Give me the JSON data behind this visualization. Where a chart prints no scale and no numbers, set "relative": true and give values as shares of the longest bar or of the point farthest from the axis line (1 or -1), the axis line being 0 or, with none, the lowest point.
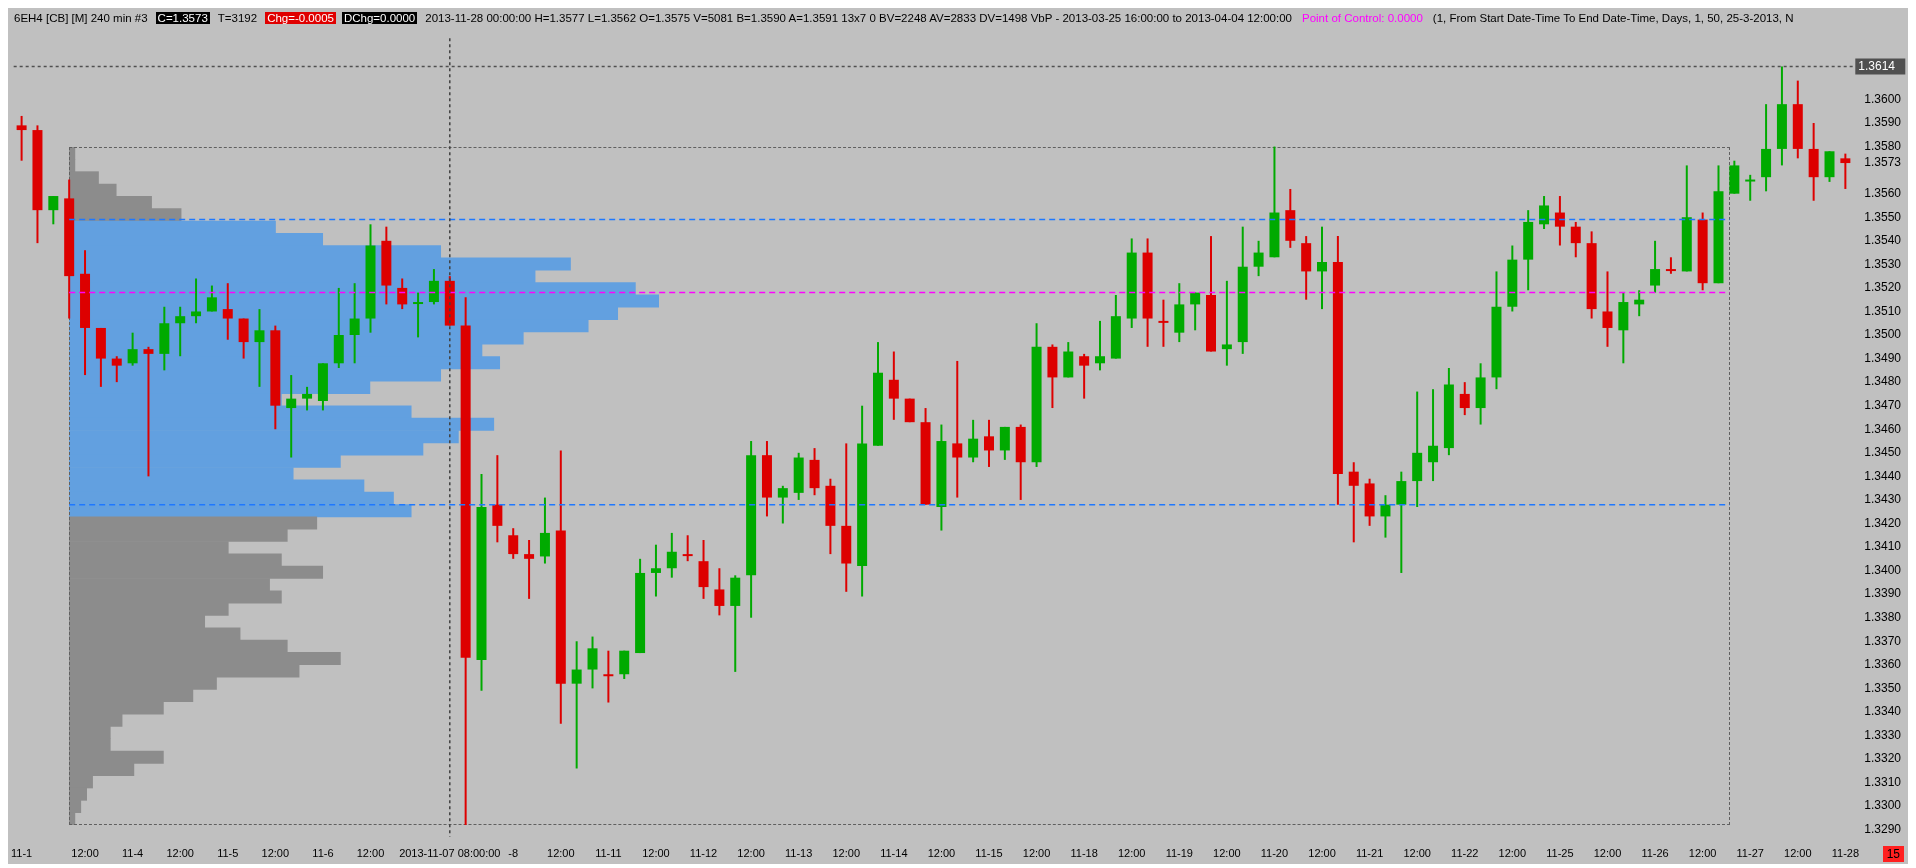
{
  "chart_data": [
    {
      "type": "candlestick",
      "title": "6EH4 [CB] [M] 240 min #3",
      "annotations": [
        "C=1.3573",
        "T=3192",
        "Chg=-0.0005",
        "DChg=0.0000",
        "2013-11-28 00:00:00 H=1.3577 L=1.3562 O=1.3575 V=5081 B=1.3590 A=1.3591 13x7 0 BV=2248 AV=2833 DV=1498 VbP - 2013-03-25 16:00:00 to 2013-04-04 12:00:00",
        "Point of Control: 0.0000",
        "(1, From Start Date-Time To End Date-Time, Days, 1, 50, 25-3-2013, N",
        "15"
      ],
      "categories": [
        "11-1",
        null,
        null,
        null,
        "12:00",
        null,
        null,
        "11-4",
        null,
        null,
        "12:00",
        null,
        null,
        "11-5",
        null,
        null,
        "12:00",
        null,
        null,
        "11-6",
        null,
        null,
        "12:00",
        null,
        null,
        null,
        null,
        "2013-11-07 08:00:00",
        null,
        null,
        null,
        "-8",
        null,
        null,
        "12:00",
        null,
        null,
        "11-11",
        null,
        null,
        "12:00",
        null,
        null,
        "11-12",
        null,
        null,
        "12:00",
        null,
        null,
        "11-13",
        null,
        null,
        "12:00",
        null,
        null,
        "11-14",
        null,
        null,
        "12:00",
        null,
        null,
        "11-15",
        null,
        null,
        "12:00",
        null,
        null,
        "11-18",
        null,
        null,
        "12:00",
        null,
        null,
        "11-19",
        null,
        null,
        "12:00",
        null,
        null,
        "11-20",
        null,
        null,
        "12:00",
        null,
        null,
        "11-21",
        null,
        null,
        "12:00",
        null,
        null,
        "11-22",
        null,
        null,
        "12:00",
        null,
        null,
        "11-25",
        null,
        null,
        "12:00",
        null,
        null,
        "11-26",
        null,
        null,
        "12:00",
        null,
        null,
        "11-27",
        null,
        null,
        "12:00",
        null,
        null,
        "11-28"
      ],
      "ohlc": [
        [
          1.3589,
          1.3593,
          1.3574,
          1.3587
        ],
        [
          1.3587,
          1.3589,
          1.3539,
          1.3553
        ],
        [
          1.3553,
          1.3559,
          1.3547,
          1.3559
        ],
        [
          1.3558,
          1.3566,
          1.3507,
          1.3525
        ],
        [
          1.3526,
          1.3536,
          1.3483,
          1.3503
        ],
        [
          1.3503,
          1.3503,
          1.3478,
          1.349
        ],
        [
          1.349,
          1.3491,
          1.348,
          1.3487
        ],
        [
          1.3488,
          1.3501,
          1.3487,
          1.3494
        ],
        [
          1.3494,
          1.3495,
          1.344,
          1.3492
        ],
        [
          1.3492,
          1.3512,
          1.3485,
          1.3505
        ],
        [
          1.3505,
          1.3512,
          1.3491,
          1.3508
        ],
        [
          1.3508,
          1.3524,
          1.3505,
          1.351
        ],
        [
          1.351,
          1.3521,
          1.351,
          1.3516
        ],
        [
          1.3511,
          1.3522,
          1.3498,
          1.3507
        ],
        [
          1.3507,
          1.3507,
          1.349,
          1.3497
        ],
        [
          1.3497,
          1.3511,
          1.3478,
          1.3502
        ],
        [
          1.3502,
          1.3504,
          1.346,
          1.347
        ],
        [
          1.3469,
          1.3483,
          1.3448,
          1.3473
        ],
        [
          1.3473,
          1.3478,
          1.3468,
          1.3475
        ],
        [
          1.3472,
          1.3488,
          1.3468,
          1.3488
        ],
        [
          1.3488,
          1.352,
          1.3486,
          1.35
        ],
        [
          1.35,
          1.3522,
          1.3488,
          1.3507
        ],
        [
          1.3507,
          1.3547,
          1.3501,
          1.3538
        ],
        [
          1.354,
          1.3546,
          1.3513,
          1.3521
        ],
        [
          1.352,
          1.3524,
          1.3511,
          1.3513
        ],
        [
          1.3514,
          1.3518,
          1.3499,
          1.3514
        ],
        [
          1.3514,
          1.3528,
          1.3513,
          1.3523
        ],
        [
          1.3523,
          1.3525,
          1.3504,
          1.3504
        ],
        [
          1.3504,
          1.3516,
          1.3292,
          1.3363
        ],
        [
          1.3362,
          1.3441,
          1.3349,
          1.3427
        ],
        [
          1.3428,
          1.3449,
          1.3412,
          1.3419
        ],
        [
          1.3415,
          1.3418,
          1.3405,
          1.3407
        ],
        [
          1.3407,
          1.3413,
          1.3388,
          1.3405
        ],
        [
          1.3406,
          1.3431,
          1.3403,
          1.3416
        ],
        [
          1.3417,
          1.3451,
          1.3335,
          1.3352
        ],
        [
          1.3352,
          1.337,
          1.3316,
          1.3358
        ],
        [
          1.3358,
          1.3372,
          1.335,
          1.3367
        ],
        [
          1.3356,
          1.3366,
          1.3344,
          1.3356
        ],
        [
          1.3356,
          1.3366,
          1.3354,
          1.3366
        ],
        [
          1.3365,
          1.3405,
          1.3365,
          1.3399
        ],
        [
          1.3399,
          1.3411,
          1.3389,
          1.3401
        ],
        [
          1.3401,
          1.3416,
          1.3397,
          1.3408
        ],
        [
          1.3407,
          1.3415,
          1.3404,
          1.3407
        ],
        [
          1.3404,
          1.3413,
          1.3388,
          1.3393
        ],
        [
          1.3392,
          1.3401,
          1.3381,
          1.3385
        ],
        [
          1.3385,
          1.3398,
          1.3357,
          1.3397
        ],
        [
          1.3398,
          1.3455,
          1.338,
          1.3449
        ],
        [
          1.3449,
          1.3455,
          1.3423,
          1.3431
        ],
        [
          1.3431,
          1.3436,
          1.342,
          1.3435
        ],
        [
          1.3433,
          1.345,
          1.343,
          1.3448
        ],
        [
          1.3447,
          1.3452,
          1.3432,
          1.3435
        ],
        [
          1.3436,
          1.3439,
          1.3407,
          1.3419
        ],
        [
          1.3419,
          1.3454,
          1.3391,
          1.3403
        ],
        [
          1.3402,
          1.347,
          1.3389,
          1.3454
        ],
        [
          1.3453,
          1.3497,
          1.3453,
          1.3484
        ],
        [
          1.3481,
          1.3493,
          1.3464,
          1.3473
        ],
        [
          1.3473,
          1.3473,
          1.3463,
          1.3463
        ],
        [
          1.3463,
          1.3469,
          1.3428,
          1.3428
        ],
        [
          1.3427,
          1.3462,
          1.3417,
          1.3455
        ],
        [
          1.3454,
          1.3489,
          1.3431,
          1.3448
        ],
        [
          1.3448,
          1.3464,
          1.3446,
          1.3456
        ],
        [
          1.3457,
          1.3464,
          1.3444,
          1.3451
        ],
        [
          1.3451,
          1.3461,
          1.3447,
          1.3461
        ],
        [
          1.3461,
          1.3462,
          1.343,
          1.3446
        ],
        [
          1.3446,
          1.3505,
          1.3444,
          1.3495
        ],
        [
          1.3495,
          1.3496,
          1.3469,
          1.3482
        ],
        [
          1.3482,
          1.3497,
          1.3482,
          1.3493
        ],
        [
          1.3491,
          1.3492,
          1.3473,
          1.3487
        ],
        [
          1.3488,
          1.3506,
          1.3485,
          1.3491
        ],
        [
          1.349,
          1.3517,
          1.349,
          1.3508
        ],
        [
          1.3507,
          1.3541,
          1.3503,
          1.3535
        ],
        [
          1.3535,
          1.3541,
          1.3495,
          1.3507
        ],
        [
          1.3506,
          1.3515,
          1.3495,
          1.3506
        ],
        [
          1.3501,
          1.3522,
          1.3497,
          1.3513
        ],
        [
          1.3513,
          1.3518,
          1.3502,
          1.3518
        ],
        [
          1.3517,
          1.3542,
          1.3493,
          1.3493
        ],
        [
          1.3494,
          1.3523,
          1.3487,
          1.3496
        ],
        [
          1.3497,
          1.3546,
          1.3492,
          1.3529
        ],
        [
          1.3529,
          1.354,
          1.3525,
          1.3535
        ],
        [
          1.3533,
          1.358,
          1.3533,
          1.3552
        ],
        [
          1.3553,
          1.3562,
          1.3537,
          1.354
        ],
        [
          1.3539,
          1.3542,
          1.3515,
          1.3527
        ],
        [
          1.3527,
          1.3546,
          1.3511,
          1.3531
        ],
        [
          1.3531,
          1.3542,
          1.3428,
          1.3441
        ],
        [
          1.3442,
          1.3446,
          1.3412,
          1.3436
        ],
        [
          1.3437,
          1.3439,
          1.3419,
          1.3423
        ],
        [
          1.3423,
          1.3432,
          1.3414,
          1.3428
        ],
        [
          1.3428,
          1.3442,
          1.3399,
          1.3438
        ],
        [
          1.3438,
          1.3476,
          1.3427,
          1.345
        ],
        [
          1.3446,
          1.3477,
          1.3438,
          1.3453
        ],
        [
          1.3452,
          1.3486,
          1.3449,
          1.3479
        ],
        [
          1.3475,
          1.348,
          1.3466,
          1.3469
        ],
        [
          1.3469,
          1.3488,
          1.3462,
          1.3482
        ],
        [
          1.3482,
          1.3527,
          1.3477,
          1.3512
        ],
        [
          1.3512,
          1.3538,
          1.351,
          1.3532
        ],
        [
          1.3532,
          1.3553,
          1.3519,
          1.3548
        ],
        [
          1.3547,
          1.3559,
          1.3545,
          1.3555
        ],
        [
          1.3552,
          1.3559,
          1.3538,
          1.3546
        ],
        [
          1.3546,
          1.3548,
          1.3533,
          1.3539
        ],
        [
          1.3539,
          1.3544,
          1.3507,
          1.3511
        ],
        [
          1.351,
          1.3527,
          1.3495,
          1.3503
        ],
        [
          1.3502,
          1.3518,
          1.3488,
          1.3514
        ],
        [
          1.3513,
          1.3519,
          1.3508,
          1.3515
        ],
        [
          1.3521,
          1.354,
          1.3518,
          1.3528
        ],
        [
          1.3528,
          1.3533,
          1.3526,
          1.3528
        ],
        [
          1.3527,
          1.3572,
          1.3527,
          1.355
        ],
        [
          1.3549,
          1.3552,
          1.3519,
          1.3522
        ],
        [
          1.3522,
          1.3572,
          1.3522,
          1.3561
        ],
        [
          1.356,
          1.3574,
          1.356,
          1.3572
        ],
        [
          1.3566,
          1.3568,
          1.3557,
          1.3566
        ],
        [
          1.3567,
          1.3598,
          1.3561,
          1.3579
        ],
        [
          1.3579,
          1.3614,
          1.3572,
          1.3598
        ],
        [
          1.3598,
          1.3608,
          1.3575,
          1.3579
        ],
        [
          1.3579,
          1.359,
          1.3557,
          1.3567
        ],
        [
          1.3567,
          1.3578,
          1.3565,
          1.3578
        ],
        [
          1.3575,
          1.3577,
          1.3562,
          1.3573
        ]
      ],
      "colors": [
        "#dd0000",
        "#dd0000",
        "#00aa00",
        "#dd0000",
        "#dd0000",
        "#dd0000",
        "#dd0000",
        "#00aa00",
        "#dd0000",
        "#00aa00",
        "#00aa00",
        "#00aa00",
        "#00aa00",
        "#dd0000",
        "#dd0000",
        "#00aa00",
        "#dd0000",
        "#00aa00",
        "#00aa00",
        "#00aa00",
        "#00aa00",
        "#00aa00",
        "#00aa00",
        "#dd0000",
        "#dd0000",
        "#00aa00",
        "#00aa00",
        "#dd0000",
        "#dd0000",
        "#00aa00",
        "#dd0000",
        "#dd0000",
        "#dd0000",
        "#00aa00",
        "#dd0000",
        "#00aa00",
        "#00aa00",
        "#dd0000",
        "#00aa00",
        "#00aa00",
        "#00aa00",
        "#00aa00",
        "#dd0000",
        "#dd0000",
        "#dd0000",
        "#00aa00",
        "#00aa00",
        "#dd0000",
        "#00aa00",
        "#00aa00",
        "#dd0000",
        "#dd0000",
        "#dd0000",
        "#00aa00",
        "#00aa00",
        "#dd0000",
        "#dd0000",
        "#dd0000",
        "#00aa00",
        "#dd0000",
        "#00aa00",
        "#dd0000",
        "#00aa00",
        "#dd0000",
        "#00aa00",
        "#dd0000",
        "#00aa00",
        "#dd0000",
        "#00aa00",
        "#00aa00",
        "#00aa00",
        "#dd0000",
        "#dd0000",
        "#00aa00",
        "#00aa00",
        "#dd0000",
        "#00aa00",
        "#00aa00",
        "#00aa00",
        "#00aa00",
        "#dd0000",
        "#dd0000",
        "#00aa00",
        "#dd0000",
        "#dd0000",
        "#dd0000",
        "#00aa00",
        "#00aa00",
        "#00aa00",
        "#00aa00",
        "#00aa00",
        "#dd0000",
        "#00aa00",
        "#00aa00",
        "#00aa00",
        "#00aa00",
        "#00aa00",
        "#dd0000",
        "#dd0000",
        "#dd0000",
        "#dd0000",
        "#00aa00",
        "#00aa00",
        "#00aa00",
        "#dd0000",
        "#00aa00",
        "#dd0000",
        "#00aa00",
        "#00aa00",
        "#00aa00",
        "#00aa00",
        "#00aa00",
        "#dd0000",
        "#dd0000",
        "#00aa00",
        "#dd0000"
      ],
      "ylim": [
        1.3287,
        1.3626
      ],
      "yticks": [
        {
          "value": 1.329,
          "label": "1.3290"
        },
        {
          "value": 1.33,
          "label": "1.3300"
        },
        {
          "value": 1.331,
          "label": "1.3310"
        },
        {
          "value": 1.332,
          "label": "1.3320"
        },
        {
          "value": 1.333,
          "label": "1.3330"
        },
        {
          "value": 1.334,
          "label": "1.3340"
        },
        {
          "value": 1.335,
          "label": "1.3350"
        },
        {
          "value": 1.336,
          "label": "1.3360"
        },
        {
          "value": 1.337,
          "label": "1.3370"
        },
        {
          "value": 1.338,
          "label": "1.3380"
        },
        {
          "value": 1.339,
          "label": "1.3390"
        },
        {
          "value": 1.34,
          "label": "1.3400"
        },
        {
          "value": 1.341,
          "label": "1.3410"
        },
        {
          "value": 1.342,
          "label": "1.3420"
        },
        {
          "value": 1.343,
          "label": "1.3430"
        },
        {
          "value": 1.344,
          "label": "1.3440"
        },
        {
          "value": 1.345,
          "label": "1.3450"
        },
        {
          "value": 1.346,
          "label": "1.3460"
        },
        {
          "value": 1.347,
          "label": "1.3470"
        },
        {
          "value": 1.348,
          "label": "1.3480"
        },
        {
          "value": 1.349,
          "label": "1.3490"
        },
        {
          "value": 1.35,
          "label": "1.3500"
        },
        {
          "value": 1.351,
          "label": "1.3510"
        },
        {
          "value": 1.352,
          "label": "1.3520"
        },
        {
          "value": 1.353,
          "label": "1.3530"
        },
        {
          "value": 1.354,
          "label": "1.3540"
        },
        {
          "value": 1.355,
          "label": "1.3550"
        },
        {
          "value": 1.356,
          "label": "1.3560"
        },
        {
          "value": 1.3573,
          "label": "1.3573"
        },
        {
          "value": 1.358,
          "label": "1.3580"
        },
        {
          "value": 1.359,
          "label": "1.3590"
        },
        {
          "value": 1.36,
          "label": "1.3600"
        }
      ],
      "ref_lines": [
        {
          "axis": "y",
          "value": 1.3549,
          "color": "#1e78ff",
          "line_style": "dashed"
        },
        {
          "axis": "y",
          "value": 1.3518,
          "color": "#ff00ff",
          "line_style": "dashed"
        },
        {
          "axis": "y",
          "value": 1.3428,
          "color": "#1e78ff",
          "line_style": "dashed"
        },
        {
          "axis": "y",
          "value": 1.3614,
          "label": "1.3614",
          "color": "#505050",
          "line_style": "dotted"
        },
        {
          "axis": "x",
          "value": "2013-11-07 08:00:00",
          "color": "#404040",
          "line_style": "dotted"
        }
      ]
    },
    {
      "type": "bar",
      "orientation": "horizontal",
      "relative": true,
      "categories": [
        null,
        null,
        null,
        null,
        null,
        null,
        null,
        null,
        null,
        null,
        null,
        null,
        null,
        null,
        null,
        null,
        null,
        null,
        null,
        null,
        null,
        null,
        null,
        null,
        null,
        null,
        null,
        null,
        null,
        null,
        null,
        null,
        null,
        null,
        null,
        null,
        null,
        null,
        null,
        null,
        null,
        null,
        null,
        null,
        null,
        null,
        null,
        null,
        null,
        null,
        null,
        null,
        null,
        null,
        null
      ],
      "values": [
        0.01,
        0.01,
        0.05,
        0.08,
        0.14,
        0.19,
        0.35,
        0.43,
        0.63,
        0.85,
        0.79,
        0.96,
        1,
        0.93,
        0.88,
        0.77,
        0.7,
        0.73,
        0.63,
        0.51,
        0.36,
        0.58,
        0.72,
        0.66,
        0.6,
        0.46,
        0.38,
        0.5,
        0.55,
        0.58,
        0.42,
        0.37,
        0.27,
        0.36,
        0.43,
        0.34,
        0.36,
        0.27,
        0.23,
        0.29,
        0.37,
        0.46,
        0.39,
        0.25,
        0.21,
        0.16,
        0.09,
        0.07,
        0.07,
        0.16,
        0.11,
        0.04,
        0.03,
        0.02,
        0.01
      ],
      "colors": [
        "#8c8c8c",
        "#8c8c8c",
        "#8c8c8c",
        "#8c8c8c",
        "#8c8c8c",
        "#8c8c8c",
        "#62a0e0",
        "#62a0e0",
        "#62a0e0",
        "#62a0e0",
        "#62a0e0",
        "#62a0e0",
        "#62a0e0",
        "#62a0e0",
        "#62a0e0",
        "#62a0e0",
        "#62a0e0",
        "#62a0e0",
        "#62a0e0",
        "#62a0e0",
        "#62a0e0",
        "#62a0e0",
        "#62a0e0",
        "#62a0e0",
        "#62a0e0",
        "#62a0e0",
        "#62a0e0",
        "#62a0e0",
        "#62a0e0",
        "#62a0e0",
        "#8c8c8c",
        "#8c8c8c",
        "#8c8c8c",
        "#8c8c8c",
        "#8c8c8c",
        "#8c8c8c",
        "#8c8c8c",
        "#8c8c8c",
        "#8c8c8c",
        "#8c8c8c",
        "#8c8c8c",
        "#8c8c8c",
        "#8c8c8c",
        "#8c8c8c",
        "#8c8c8c",
        "#8c8c8c",
        "#8c8c8c",
        "#8c8c8c",
        "#8c8c8c",
        "#8c8c8c",
        "#8c8c8c",
        "#8c8c8c",
        "#8c8c8c",
        "#8c8c8c",
        "#8c8c8c"
      ]
    }
  ]
}
